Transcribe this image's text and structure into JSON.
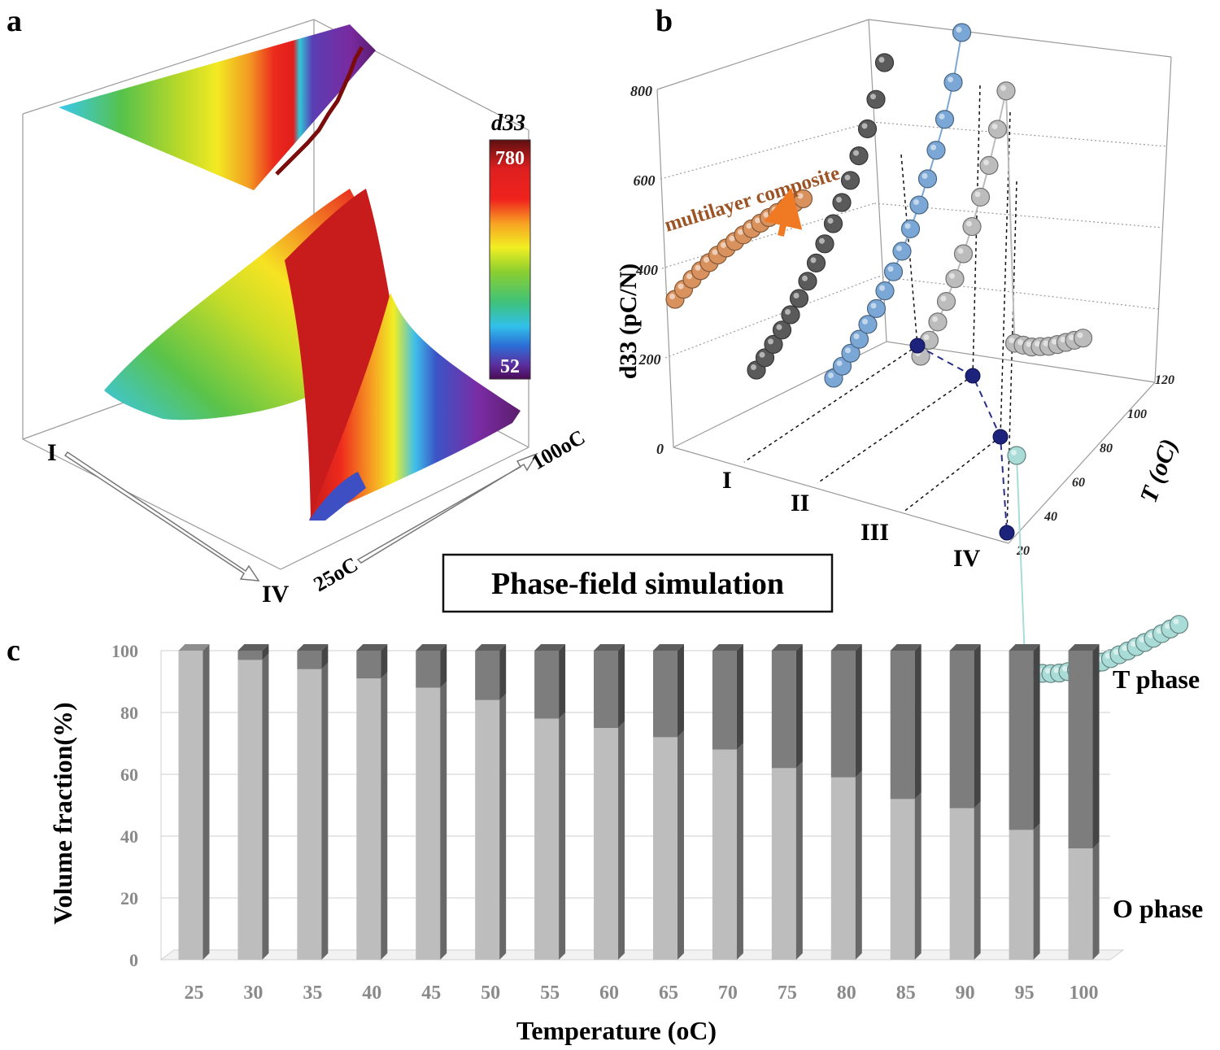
{
  "panels": {
    "a": {
      "letter": "a",
      "colorbar": {
        "label": "d33",
        "max": "780",
        "min": "52"
      },
      "axis_start": "I",
      "axis_end": "IV",
      "temp_start": "25oC",
      "temp_end": "100oC"
    },
    "b": {
      "letter": "b",
      "annotation": "multilayer composite",
      "zlabel": "d33 (pC/N)",
      "zticks": [
        "0",
        "200",
        "400",
        "600",
        "800"
      ],
      "tlabel": "T (oC)",
      "tticks": [
        "20",
        "40",
        "60",
        "80",
        "100",
        "120"
      ],
      "categories": [
        "I",
        "II",
        "III",
        "IV"
      ]
    },
    "c": {
      "letter": "c",
      "t_label": "T phase",
      "o_label": "O phase"
    }
  },
  "center_box": {
    "text": "Phase-field simulation"
  },
  "colors": {
    "t_phase": "#7d7d7d",
    "o_phase": "#bdbdbd"
  },
  "chart_data": [
    {
      "panel": "c",
      "type": "bar",
      "stacked": true,
      "xlabel": "Temperature (oC)",
      "ylabel": "Volume fraction(%)",
      "ylim": [
        0,
        100
      ],
      "yticks": [
        0,
        20,
        40,
        60,
        80,
        100
      ],
      "categories": [
        "25",
        "30",
        "35",
        "40",
        "45",
        "50",
        "55",
        "60",
        "65",
        "70",
        "75",
        "80",
        "85",
        "90",
        "95",
        "100"
      ],
      "series": [
        {
          "name": "O phase",
          "values": [
            100,
            97,
            94,
            91,
            88,
            84,
            78,
            75,
            72,
            68,
            62,
            59,
            52,
            49,
            42,
            36
          ]
        },
        {
          "name": "T phase",
          "values": [
            0,
            3,
            6,
            9,
            12,
            16,
            22,
            25,
            28,
            32,
            38,
            41,
            48,
            51,
            58,
            64
          ]
        }
      ],
      "grid": true
    },
    {
      "panel": "b",
      "type": "scatter",
      "xlabel": "T (oC)",
      "ylabel": "d33 (pC/N)",
      "zlim": [
        0,
        800
      ],
      "tlim": [
        20,
        120
      ],
      "series": [
        {
          "category": "multilayer composite",
          "x": [
            25,
            30,
            35,
            40,
            45,
            50,
            55,
            60,
            65,
            70,
            75,
            80,
            85,
            90,
            95,
            100
          ],
          "values": [
            360,
            375,
            390,
            402,
            413,
            423,
            432,
            440,
            448,
            455,
            461,
            467,
            472,
            477,
            481,
            484
          ]
        },
        {
          "category": "I",
          "x": [
            25,
            30,
            35,
            40,
            45,
            50,
            55,
            60,
            65,
            70,
            75,
            80,
            85,
            90,
            95,
            100
          ],
          "values": [
            170,
            190,
            212,
            236,
            262,
            290,
            320,
            352,
            386,
            422,
            460,
            500,
            545,
            595,
            650,
            720
          ]
        },
        {
          "category": "II",
          "x": [
            25,
            30,
            35,
            40,
            45,
            50,
            55,
            60,
            65,
            70,
            75,
            80,
            85,
            90,
            95,
            100
          ],
          "values": [
            140,
            160,
            182,
            206,
            232,
            260,
            292,
            327,
            365,
            407,
            452,
            502,
            557,
            617,
            690,
            790
          ]
        },
        {
          "category": "III",
          "x": [
            25,
            30,
            35,
            40,
            45,
            50,
            55,
            60,
            65,
            70,
            75,
            80,
            85,
            90,
            95,
            100,
            105,
            110,
            115,
            120
          ],
          "values": [
            185,
            215,
            250,
            290,
            335,
            385,
            440,
            500,
            565,
            640,
            720,
            150,
            140,
            130,
            125,
            120,
            118,
            117,
            116,
            115
          ]
        },
        {
          "category": "IV",
          "x": [
            25,
            30,
            35,
            40,
            45,
            50,
            55,
            60,
            65,
            70,
            75,
            80,
            85,
            90,
            95,
            100,
            105,
            110,
            115,
            120
          ],
          "values": [
            650,
            120,
            105,
            95,
            88,
            83,
            80,
            78,
            77,
            77,
            78,
            80,
            83,
            86,
            90,
            94,
            98,
            103,
            108,
            113
          ]
        },
        {
          "category": "projection",
          "x": [
            105,
            85,
            60,
            30
          ],
          "values": [
            0,
            0,
            0,
            0
          ]
        }
      ]
    }
  ]
}
